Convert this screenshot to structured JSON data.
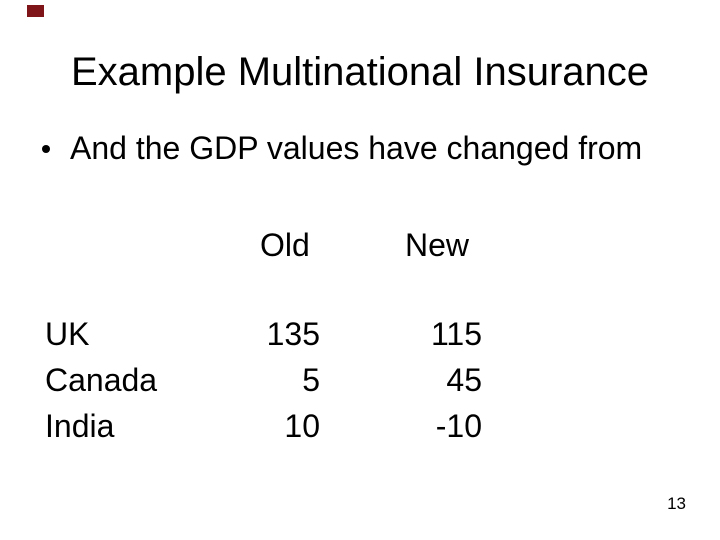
{
  "slide": {
    "title": "Example Multinational Insurance",
    "bullet": {
      "glyph": "•",
      "text": "And the GDP values have changed from"
    },
    "page_number": "13",
    "colors": {
      "background": "#ffffff",
      "text": "#000000",
      "corner_mark": "#7f1518"
    }
  },
  "table": {
    "col_headers": {
      "old": "Old",
      "new": "New"
    },
    "rows": [
      {
        "country": "UK",
        "old": "135",
        "new": "115"
      },
      {
        "country": "Canada",
        "old": "5",
        "new": "45"
      },
      {
        "country": "India",
        "old": "10",
        "new": "-10"
      }
    ]
  },
  "chart_data": {
    "type": "table",
    "title": "Example Multinational Insurance",
    "categories": [
      "UK",
      "Canada",
      "India"
    ],
    "series": [
      {
        "name": "Old",
        "values": [
          135,
          5,
          10
        ]
      },
      {
        "name": "New",
        "values": [
          115,
          45,
          -10
        ]
      }
    ]
  }
}
